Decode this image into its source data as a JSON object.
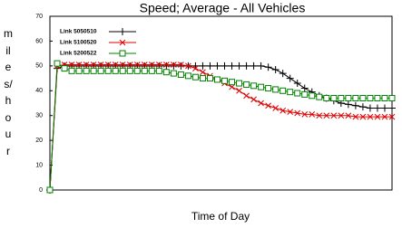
{
  "chart_data": {
    "type": "line",
    "title": "Speed; Average - All Vehicles",
    "x_label": "Time of Day",
    "y_label": "miles/hour",
    "ylim": [
      0,
      70
    ],
    "yticks": [
      0,
      10,
      20,
      30,
      40,
      50,
      60,
      70
    ],
    "series": [
      {
        "name": "Link 5050510",
        "color": "#000000",
        "marker": "plus",
        "values": [
          0,
          49,
          50,
          50,
          50,
          50,
          50,
          50,
          50,
          50,
          50,
          50,
          50,
          50,
          50,
          50,
          50,
          50,
          50,
          50,
          50,
          50,
          50,
          50,
          50,
          50,
          50,
          50,
          50,
          50,
          49.5,
          48.5,
          47,
          45,
          43,
          41,
          39.5,
          38,
          37,
          36,
          35,
          34.5,
          34,
          33.5,
          33,
          33,
          33,
          33
        ]
      },
      {
        "name": "Link 5100520",
        "color": "#e00000",
        "marker": "x",
        "values": [
          0,
          50,
          50.5,
          50.5,
          50.5,
          50.5,
          50.5,
          50.5,
          50.5,
          50.5,
          50.5,
          50.5,
          50.5,
          50.5,
          50.5,
          50.5,
          50.5,
          50.5,
          50.5,
          50,
          49,
          47.5,
          46,
          44.5,
          43,
          41.5,
          40,
          38,
          36.5,
          35,
          34,
          33,
          32,
          31.5,
          31,
          30.5,
          30.5,
          30,
          30,
          30,
          30,
          30,
          29.5,
          29.5,
          29.5,
          29.5,
          29.5,
          29.5
        ]
      },
      {
        "name": "Link 5200522",
        "color": "#008000",
        "marker": "square",
        "values": [
          0,
          51,
          49,
          48,
          48,
          48,
          48,
          48,
          48,
          48,
          48,
          48,
          48,
          48,
          48,
          48,
          47.5,
          47,
          46.5,
          46,
          45.5,
          45,
          45,
          44.5,
          44,
          43.5,
          43,
          42.5,
          42,
          41.5,
          41,
          40.5,
          40,
          39.5,
          39,
          38.5,
          38,
          37.5,
          37,
          37,
          37,
          37,
          37,
          37,
          37,
          37,
          37,
          37
        ]
      }
    ]
  }
}
